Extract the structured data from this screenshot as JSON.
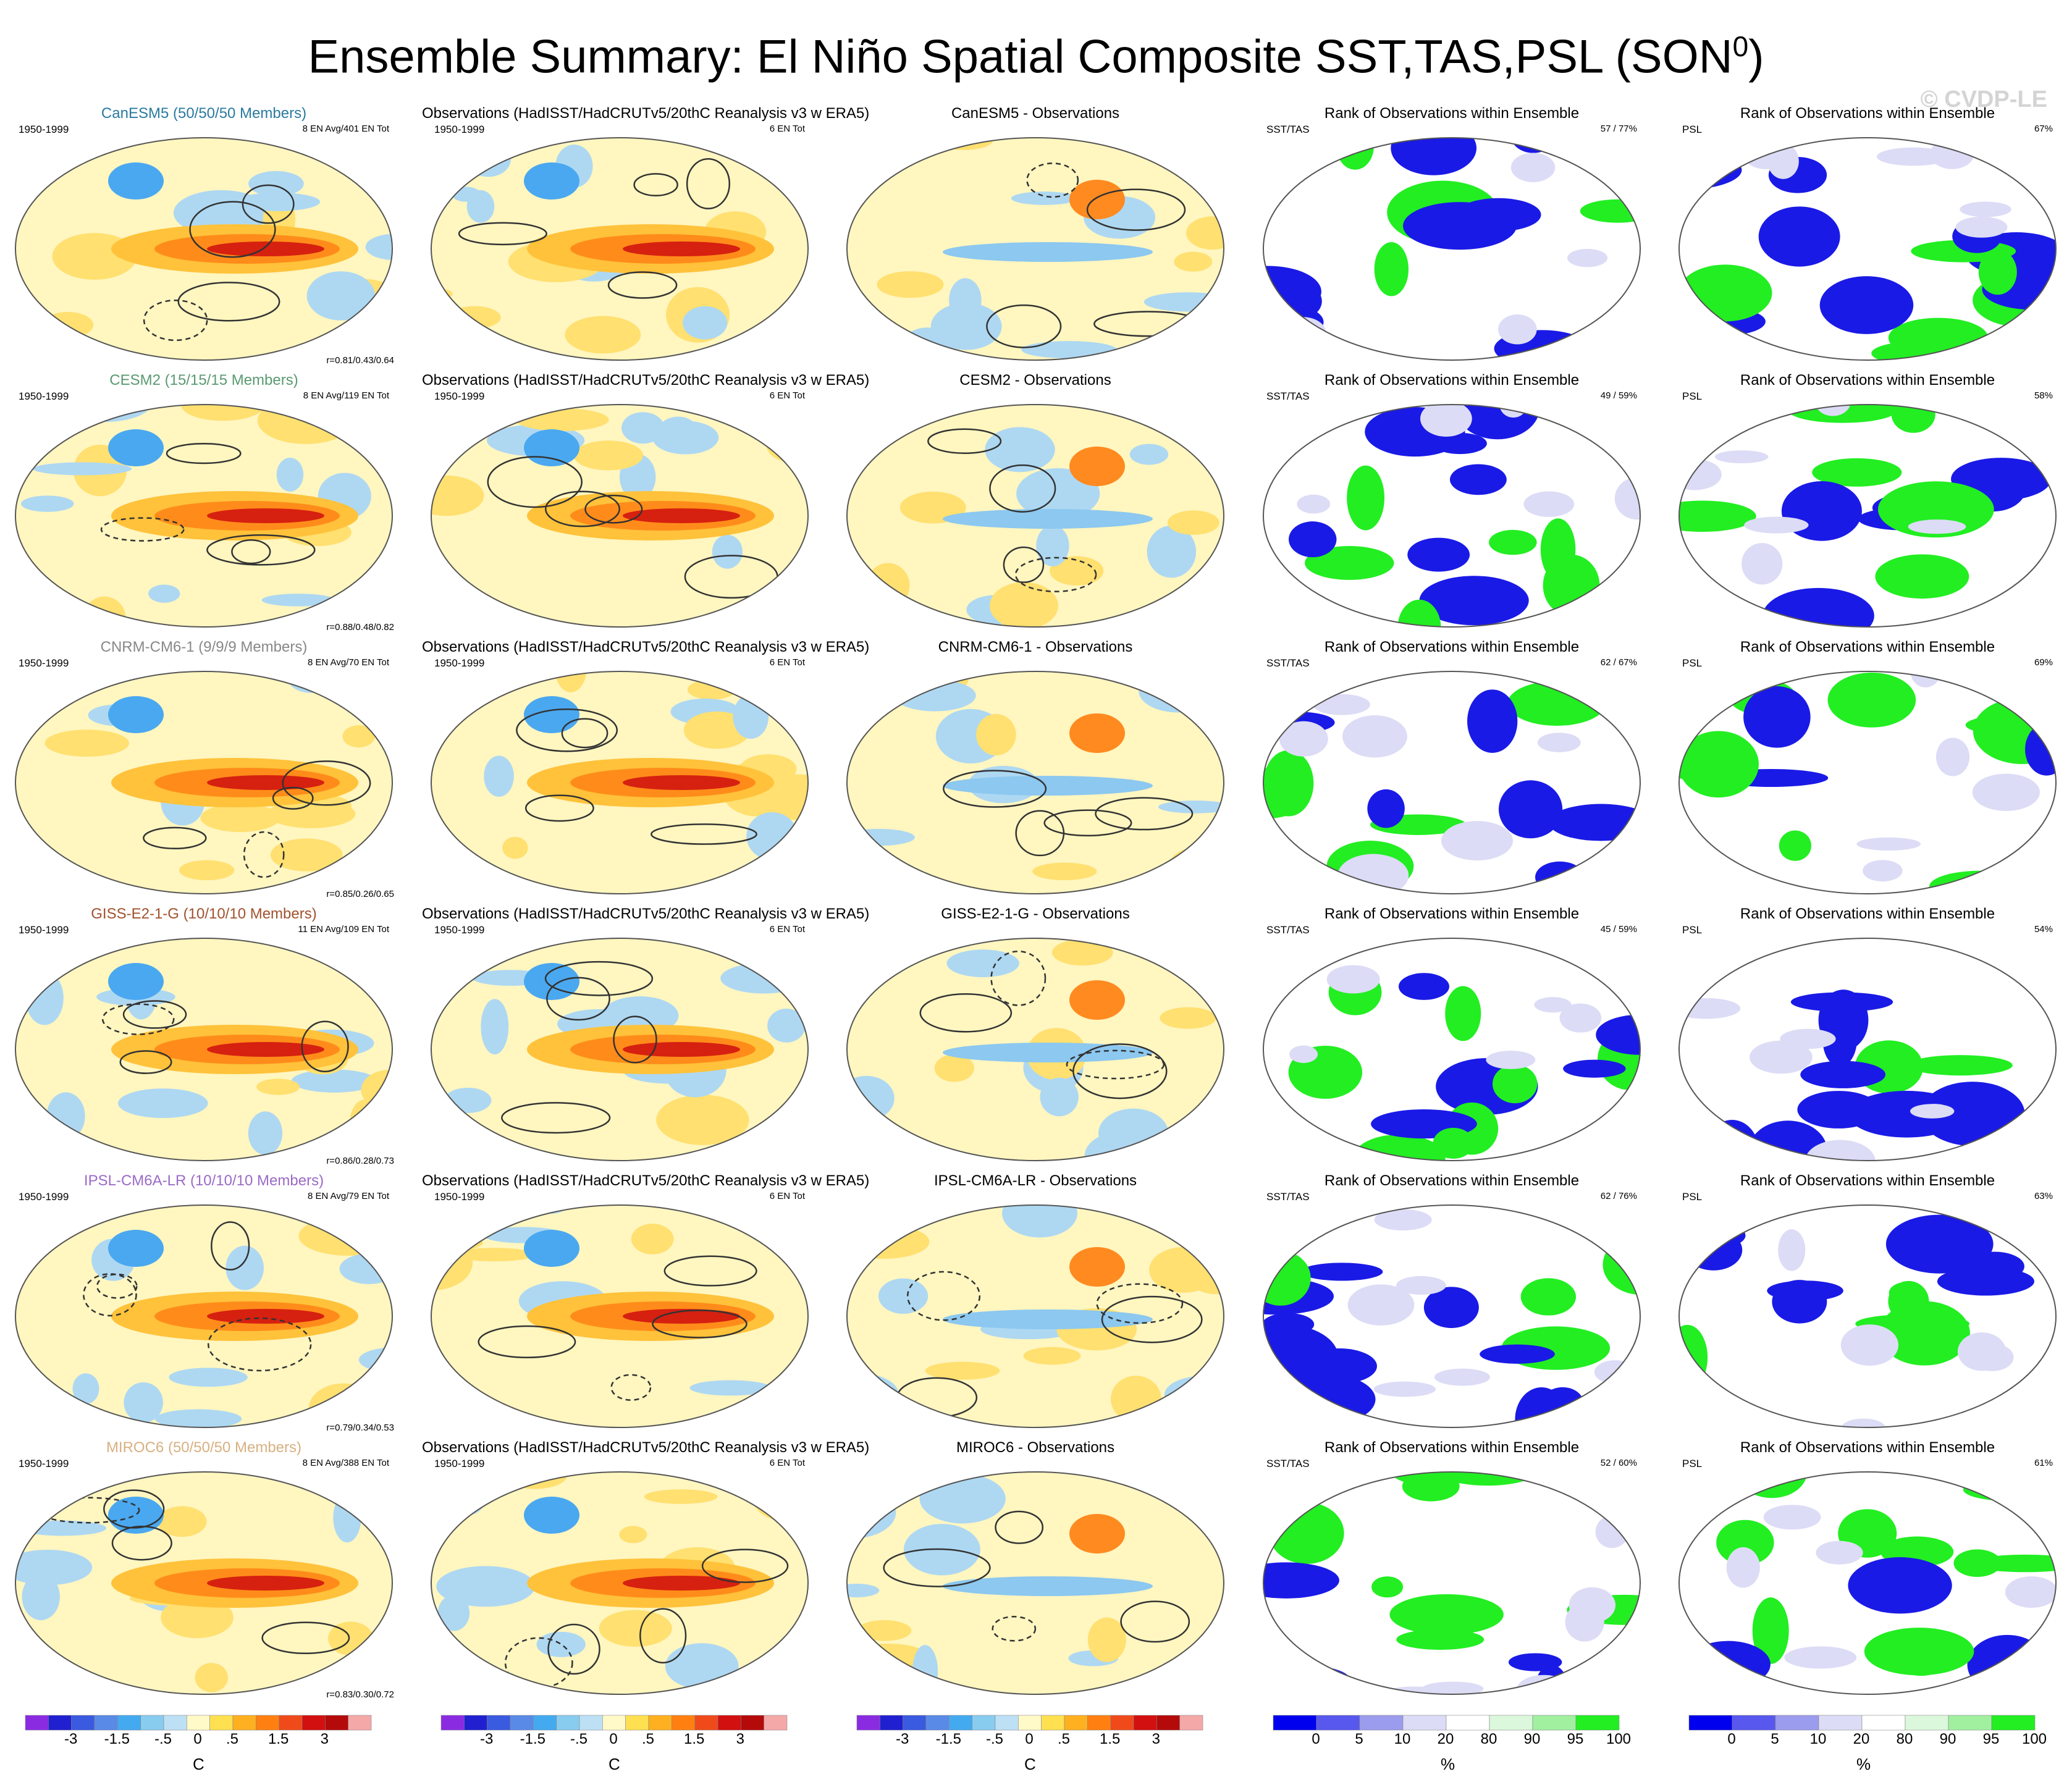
{
  "title": "Ensemble Summary: El Niño Spatial Composite SST,TAS,PSL (SON",
  "title_sup": "0",
  "title_close": ")",
  "watermark": "© CVDP-LE",
  "period": "1950-1999",
  "obs_title": "Observations (HadISST/HadCRUTv5/20thC Reanalysis v3 w ERA5)",
  "obs_events": "6 EN Tot",
  "rank_title": "Rank of Observations within Ensemble",
  "rank_var_a": "SST/TAS",
  "rank_var_b": "PSL",
  "rows": [
    {
      "model_label": "CanESM5 (50/50/50 Members)",
      "color": "#2a7aa0",
      "events": "8 EN Avg/401 EN Tot",
      "r": "r=0.81/0.43/0.64",
      "diff_title": "CanESM5 - Observations",
      "rank_a": "57 /  77%",
      "rank_b": "67%"
    },
    {
      "model_label": "CESM2 (15/15/15 Members)",
      "color": "#5a9a70",
      "events": "8 EN Avg/119 EN Tot",
      "r": "r=0.88/0.48/0.82",
      "diff_title": "CESM2 - Observations",
      "rank_a": "49 /  59%",
      "rank_b": "58%"
    },
    {
      "model_label": "CNRM-CM6-1 (9/9/9 Members)",
      "color": "#888888",
      "events": "8 EN Avg/70 EN Tot",
      "r": "r=0.85/0.26/0.65",
      "diff_title": "CNRM-CM6-1 - Observations",
      "rank_a": "62 /  67%",
      "rank_b": "69%"
    },
    {
      "model_label": "GISS-E2-1-G (10/10/10 Members)",
      "color": "#a0522d",
      "events": "11 EN Avg/109 EN Tot",
      "r": "r=0.86/0.28/0.73",
      "diff_title": "GISS-E2-1-G - Observations",
      "rank_a": "45 /  59%",
      "rank_b": "54%"
    },
    {
      "model_label": "IPSL-CM6A-LR (10/10/10 Members)",
      "color": "#9b6ac8",
      "events": "8 EN Avg/79 EN Tot",
      "r": "r=0.79/0.34/0.53",
      "diff_title": "IPSL-CM6A-LR - Observations",
      "rank_a": "62 /  76%",
      "rank_b": "63%"
    },
    {
      "model_label": "MIROC6 (50/50/50 Members)",
      "color": "#d8b080",
      "events": "8 EN Avg/388 EN Tot",
      "r": "r=0.83/0.30/0.72",
      "diff_title": "MIROC6 - Observations",
      "rank_a": "52 /  60%",
      "rank_b": "61%"
    }
  ],
  "colorbar_temp": {
    "unit": "C",
    "ticks": [
      "-3",
      "-1.5",
      "-.5",
      "0",
      ".5",
      "1.5",
      "3"
    ],
    "colors": [
      "#8a2be2",
      "#2020d0",
      "#3a5ae0",
      "#5a8ae8",
      "#44aaf0",
      "#88ccf0",
      "#bde0f5",
      "#fffac8",
      "#ffe050",
      "#ffb020",
      "#ff8010",
      "#f04a1a",
      "#d21010",
      "#b40a0a",
      "#f5a8a8"
    ]
  },
  "colorbar_rank": {
    "unit": "%",
    "ticks": [
      "0",
      "5",
      "10",
      "20",
      "80",
      "90",
      "95",
      "100"
    ],
    "colors": [
      "#0000ee",
      "#5858ee",
      "#9c9cee",
      "#dcdcf6",
      "#ffffff",
      "#dcf8dc",
      "#a0f0a0",
      "#22ee22"
    ]
  }
}
